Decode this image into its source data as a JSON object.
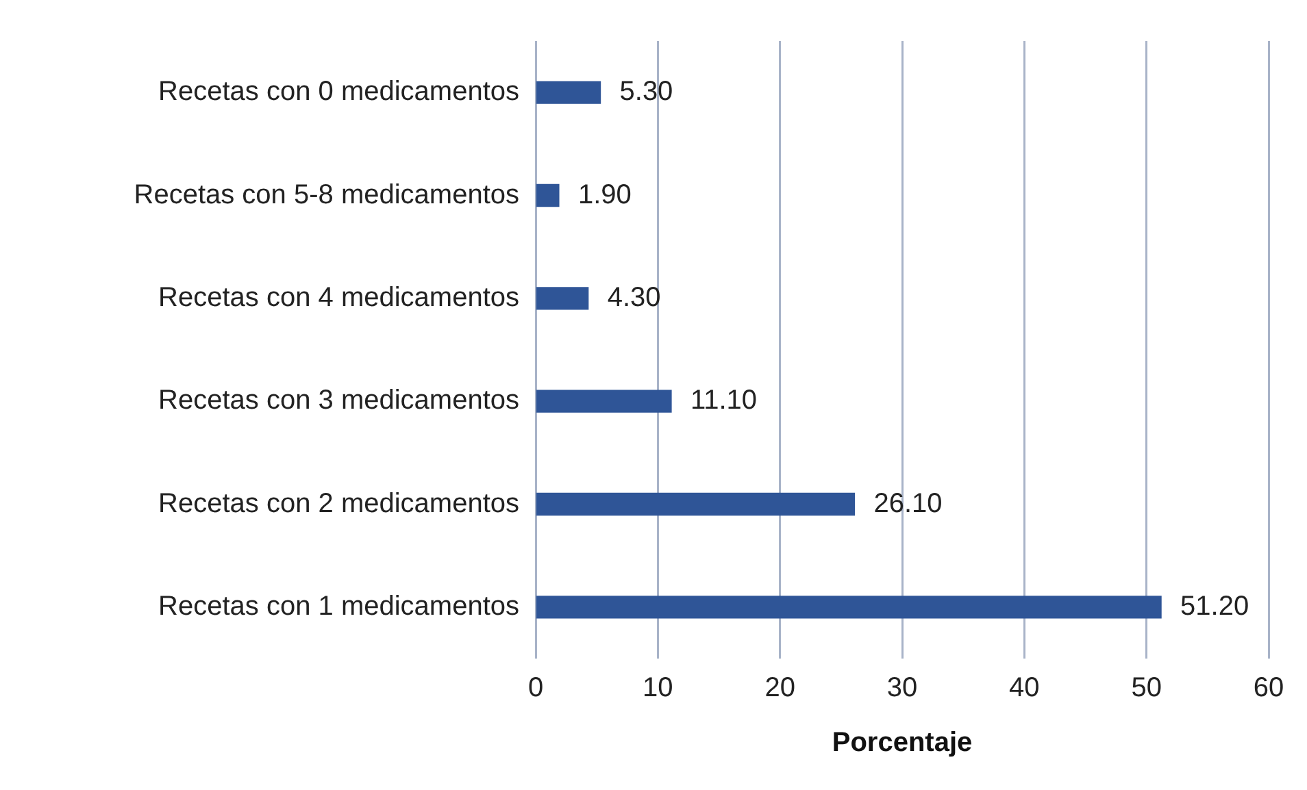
{
  "chart_data": {
    "type": "bar",
    "orientation": "horizontal",
    "categories": [
      "Recetas con 0 medicamentos",
      "Recetas con 5-8 medicamentos",
      "Recetas con 4 medicamentos",
      "Recetas con 3 medicamentos",
      "Recetas con 2 medicamentos",
      "Recetas con 1 medicamentos"
    ],
    "values": [
      5.3,
      1.9,
      4.3,
      11.1,
      26.1,
      51.2
    ],
    "value_labels": [
      "5.30",
      "1.90",
      "4.30",
      "11.10",
      "26.10",
      "51.20"
    ],
    "color": "#2f5597",
    "xlabel": "Porcentaje",
    "xlim": [
      0,
      60
    ],
    "xticks": [
      0,
      10,
      20,
      30,
      40,
      50,
      60
    ],
    "grid": "x",
    "legend": false
  }
}
